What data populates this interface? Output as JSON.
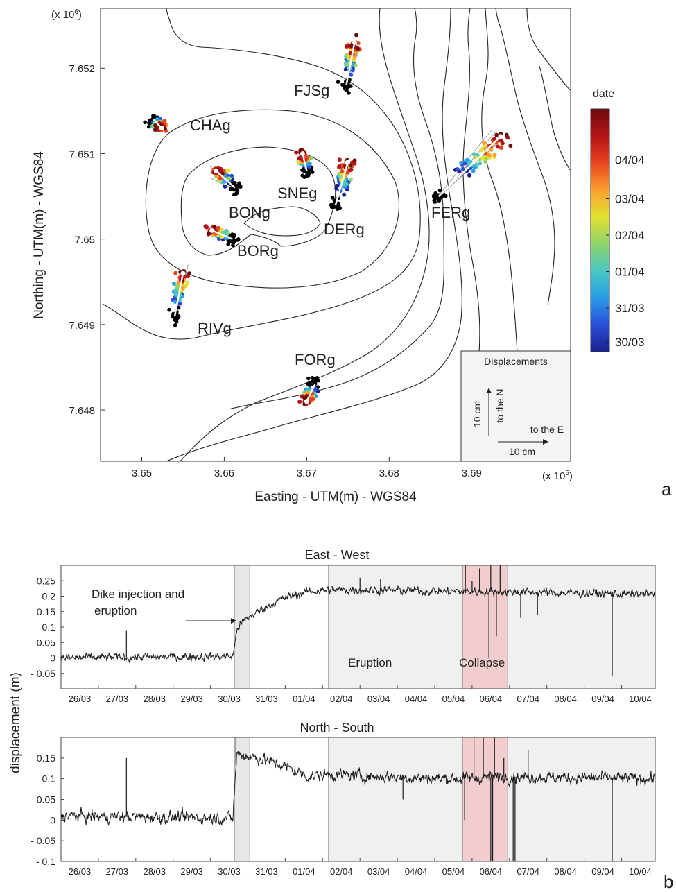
{
  "chart_data": [
    {
      "type": "scatter",
      "panel_label": "a",
      "x_multiplier": "(x 10",
      "x_multiplier_exp": "5",
      "y_multiplier": "(x 10",
      "y_multiplier_exp": "6",
      "xlabel": "Easting - UTM(m) - WGS84",
      "ylabel": "Northing - UTM(m) - WGS84",
      "xlim": [
        3.645,
        3.702
      ],
      "ylim": [
        7.6474,
        7.6527
      ],
      "xticks": [
        {
          "v": 3.65,
          "label": "3.65"
        },
        {
          "v": 3.66,
          "label": "3.66"
        },
        {
          "v": 3.67,
          "label": "3.67"
        },
        {
          "v": 3.68,
          "label": "3.68"
        },
        {
          "v": 3.69,
          "label": "3.69"
        }
      ],
      "yticks": [
        {
          "v": 7.648,
          "label": "7.648"
        },
        {
          "v": 7.649,
          "label": "7.649"
        },
        {
          "v": 7.65,
          "label": "7.65"
        },
        {
          "v": 7.651,
          "label": "7.651"
        },
        {
          "v": 7.652,
          "label": "7.652"
        }
      ],
      "colorbar": {
        "title": "date",
        "colors": [
          "#1a1f8f",
          "#2a4fd6",
          "#2a9ce8",
          "#48c9c0",
          "#8fd36a",
          "#e3e032",
          "#f9a030",
          "#ea4320",
          "#b31418",
          "#6e0b0d"
        ],
        "ticks": [
          {
            "label": "30/03",
            "frac": 0.04
          },
          {
            "label": "31/03",
            "frac": 0.18
          },
          {
            "label": "01/04",
            "frac": 0.33
          },
          {
            "label": "02/04",
            "frac": 0.48
          },
          {
            "label": "03/04",
            "frac": 0.63
          },
          {
            "label": "04/04",
            "frac": 0.79
          }
        ]
      },
      "stations": [
        {
          "name": "CHAg",
          "ref": [
            3.6514,
            7.6514
          ],
          "end": [
            3.6524,
            7.6513
          ],
          "shift": [
            0.6,
            0.0
          ]
        },
        {
          "name": "FJSg",
          "ref": [
            3.6748,
            7.6518
          ],
          "end": [
            3.6758,
            7.6523
          ],
          "shift": [
            0.4,
            0.7
          ]
        },
        {
          "name": "BONg",
          "ref": [
            3.6613,
            7.6506
          ],
          "end": [
            3.659,
            7.6508
          ],
          "shift": [
            -0.9,
            0.2
          ]
        },
        {
          "name": "SNEg",
          "ref": [
            3.67,
            7.6508
          ],
          "end": [
            3.6695,
            7.651
          ],
          "shift": [
            -0.2,
            0.3
          ]
        },
        {
          "name": "DERg",
          "ref": [
            3.6735,
            7.6504
          ],
          "end": [
            3.675,
            7.6509
          ],
          "shift": [
            0.6,
            0.4
          ]
        },
        {
          "name": "FERg",
          "ref": [
            3.686,
            7.6505
          ],
          "end": [
            3.6935,
            7.6512
          ],
          "shift": [
            4.5,
            0.7
          ]
        },
        {
          "name": "BORg",
          "ref": [
            3.661,
            7.65
          ],
          "end": [
            3.6585,
            7.6501
          ],
          "shift": [
            -1.0,
            0.0
          ]
        },
        {
          "name": "RIVg",
          "ref": [
            3.654,
            7.6491
          ],
          "end": [
            3.655,
            7.6496
          ],
          "shift": [
            0.4,
            0.5
          ]
        },
        {
          "name": "FORg",
          "ref": [
            3.671,
            7.6483
          ],
          "end": [
            3.67,
            7.6481
          ],
          "shift": [
            -0.4,
            -0.2
          ]
        }
      ],
      "legend": {
        "title": "Displacements",
        "north_label": "to the N",
        "north_scale": "10 cm",
        "east_label": "to the E",
        "east_scale": "10 cm"
      }
    },
    {
      "type": "line",
      "panel_label": "b",
      "ylabel": "displacement (m)",
      "x_tick_labels": [
        "26/03",
        "27/03",
        "28/03",
        "29/03",
        "30/03",
        "31/03",
        "01/04",
        "02/04",
        "03/04",
        "04/04",
        "05/04",
        "06/04",
        "07/04",
        "08/04",
        "09/04",
        "10/04"
      ],
      "xlim": [
        0,
        15.9
      ],
      "spans": [
        {
          "name": "dike",
          "from": 4.65,
          "to": 5.05,
          "color": "#e6e8e6"
        },
        {
          "name": "eruption",
          "from": 7.15,
          "to": 15.9,
          "color": "#eff1ef"
        },
        {
          "name": "collapse",
          "from": 10.75,
          "to": 11.95,
          "color": "#f1cdd0"
        }
      ],
      "annotations": {
        "dike_line1": "Dike injection and",
        "dike_line2": "eruption",
        "eruption": "Eruption",
        "collapse": "Collapse"
      },
      "subplots": [
        {
          "title": "East - West",
          "ylim": [
            -0.1,
            0.3
          ],
          "yticks": [
            {
              "v": -0.05,
              "label": "- 0.05"
            },
            {
              "v": 0,
              "label": "0"
            },
            {
              "v": 0.05,
              "label": "0.05"
            },
            {
              "v": 0.1,
              "label": "0.1"
            },
            {
              "v": 0.15,
              "label": "0.15"
            },
            {
              "v": 0.2,
              "label": "0.2"
            },
            {
              "v": 0.25,
              "label": "0.25"
            }
          ],
          "trend": [
            [
              0,
              0
            ],
            [
              4.6,
              0.005
            ],
            [
              4.72,
              0.1
            ],
            [
              4.95,
              0.125
            ],
            [
              5.4,
              0.16
            ],
            [
              6.0,
              0.195
            ],
            [
              6.6,
              0.215
            ],
            [
              7.2,
              0.22
            ],
            [
              8.5,
              0.22
            ],
            [
              10.5,
              0.215
            ],
            [
              11.9,
              0.215
            ],
            [
              15.9,
              0.205
            ]
          ],
          "noise": 0.011,
          "spikes": [
            [
              1.75,
              0.09
            ],
            [
              8.55,
              0.255
            ],
            [
              8.0,
              0.26
            ],
            [
              10.82,
              0.32
            ],
            [
              11.0,
              0.25
            ],
            [
              11.2,
              0.29
            ],
            [
              11.45,
              0.0
            ],
            [
              11.5,
              0.33
            ],
            [
              11.65,
              0.07
            ],
            [
              11.75,
              0.32
            ],
            [
              12.3,
              0.13
            ],
            [
              12.75,
              0.14
            ],
            [
              14.75,
              -0.06
            ]
          ]
        },
        {
          "title": "North - South",
          "ylim": [
            -0.1,
            0.2
          ],
          "yticks": [
            {
              "v": -0.1,
              "label": "- 0.1"
            },
            {
              "v": -0.05,
              "label": "- 0.05"
            },
            {
              "v": 0,
              "label": "0"
            },
            {
              "v": 0.05,
              "label": "0.05"
            },
            {
              "v": 0.1,
              "label": "0.1"
            },
            {
              "v": 0.15,
              "label": "0.15"
            }
          ],
          "trend": [
            [
              0,
              0.01
            ],
            [
              4.6,
              0.005
            ],
            [
              4.7,
              0.16
            ],
            [
              5.3,
              0.15
            ],
            [
              6.0,
              0.13
            ],
            [
              6.6,
              0.105
            ],
            [
              7.2,
              0.11
            ],
            [
              8.5,
              0.105
            ],
            [
              10.5,
              0.1
            ],
            [
              11.9,
              0.105
            ],
            [
              15.9,
              0.1
            ]
          ],
          "noise": 0.012,
          "spikes": [
            [
              1.75,
              0.15
            ],
            [
              4.68,
              0.2
            ],
            [
              9.15,
              0.05
            ],
            [
              10.8,
              0.0
            ],
            [
              11.05,
              0.2
            ],
            [
              11.3,
              0.2
            ],
            [
              11.5,
              -0.1
            ],
            [
              11.55,
              -0.1
            ],
            [
              11.6,
              0.2
            ],
            [
              11.85,
              0.15
            ],
            [
              12.1,
              -0.1
            ],
            [
              12.15,
              -0.1
            ],
            [
              12.5,
              0.17
            ],
            [
              14.75,
              -0.1
            ]
          ]
        }
      ]
    }
  ]
}
